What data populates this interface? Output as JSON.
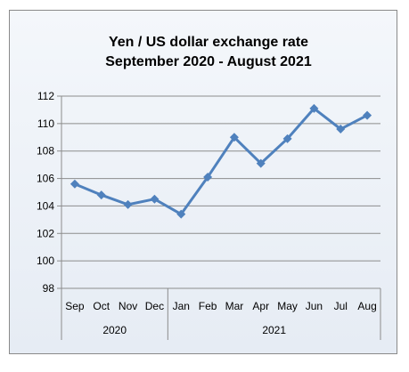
{
  "chart_data": {
    "type": "line",
    "title": "Yen / US dollar exchange rate",
    "subtitle": "September 2020 - August 2021",
    "xlabel": "",
    "ylabel": "",
    "categories": [
      "Sep",
      "Oct",
      "Nov",
      "Dec",
      "Jan",
      "Feb",
      "Mar",
      "Apr",
      "May",
      "Jun",
      "Jul",
      "Aug"
    ],
    "year_groups": [
      {
        "label": "2020",
        "count": 4
      },
      {
        "label": "2021",
        "count": 8
      }
    ],
    "series": [
      {
        "values": [
          105.6,
          104.8,
          104.1,
          104.5,
          103.4,
          106.1,
          109.0,
          107.1,
          108.9,
          111.1,
          109.6,
          110.6
        ],
        "color": "#4f81bd"
      }
    ],
    "ylim": [
      98,
      112
    ],
    "yticks": [
      98,
      100,
      102,
      104,
      106,
      108,
      110,
      112
    ],
    "grid": true,
    "legend": "none"
  }
}
